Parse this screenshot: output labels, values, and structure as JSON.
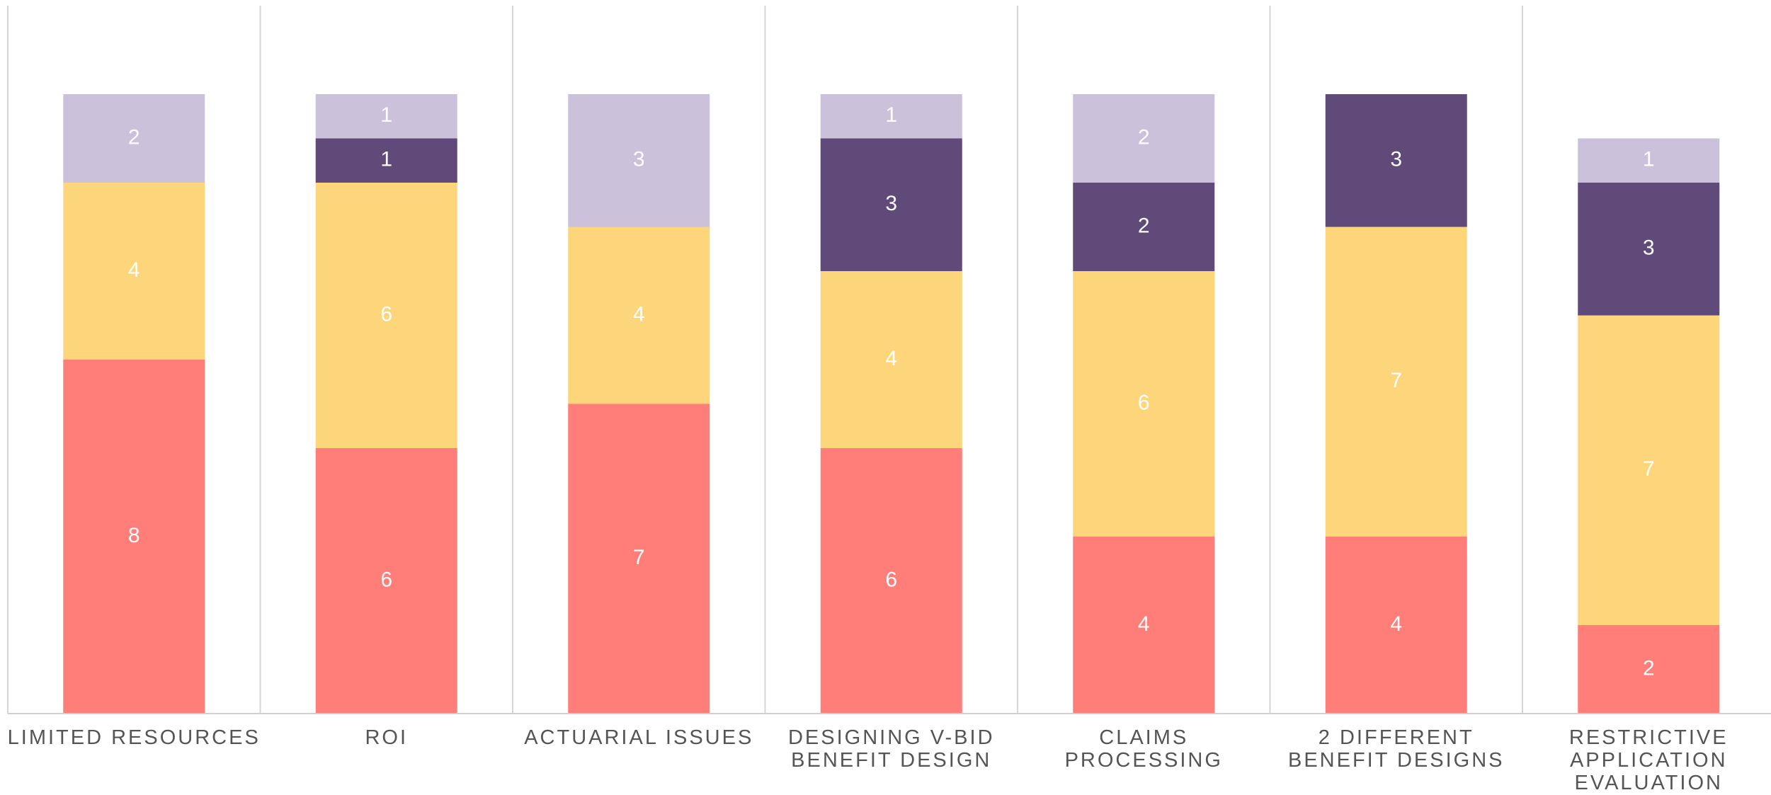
{
  "chart_data": {
    "type": "stacked_bar",
    "categories": [
      "LIMITED RESOURCES",
      "ROI",
      "ACTUARIAL ISSUES",
      "DESIGNING V-BID\nBENEFIT DESIGN",
      "CLAIMS\nPROCESSING",
      "2 DIFFERENT\nBENEFIT DESIGNS",
      "RESTRICTIVE\nAPPLICATION\nEVALUATION"
    ],
    "series": [
      {
        "color": "#ff7e7a",
        "values": [
          8,
          6,
          7,
          6,
          4,
          4,
          2
        ]
      },
      {
        "color": "#fdd57b",
        "values": [
          4,
          6,
          4,
          4,
          6,
          7,
          7
        ]
      },
      {
        "color": "#5f4a7a",
        "values": [
          0,
          1,
          0,
          3,
          2,
          3,
          3
        ]
      },
      {
        "color": "#cbc1da",
        "values": [
          2,
          1,
          3,
          1,
          2,
          0,
          1
        ]
      }
    ],
    "ylim": [
      0,
      16
    ]
  }
}
